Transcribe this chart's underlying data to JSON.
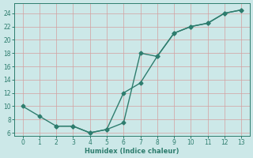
{
  "line1_x": [
    0,
    1,
    2,
    3,
    4,
    5,
    6,
    7,
    8,
    9,
    10,
    11,
    12,
    13
  ],
  "line1_y": [
    10,
    8.5,
    7,
    7,
    6,
    6.5,
    7.5,
    18,
    17.5,
    21,
    22,
    22.5,
    24,
    24.5
  ],
  "line2_x": [
    2,
    3,
    4,
    5,
    6,
    7,
    8,
    9,
    10,
    11,
    12,
    13
  ],
  "line2_y": [
    7,
    7,
    6,
    6.5,
    12,
    13.5,
    17.5,
    21,
    22,
    22.5,
    24,
    24.5
  ],
  "line_color": "#2e7d6e",
  "bg_color": "#cce8e8",
  "grid_color": "#b0d4d4",
  "xlabel": "Humidex (Indice chaleur)",
  "xlim": [
    -0.5,
    13.5
  ],
  "ylim": [
    5.5,
    25.5
  ],
  "xticks": [
    0,
    1,
    2,
    3,
    4,
    5,
    6,
    7,
    8,
    9,
    10,
    11,
    12,
    13
  ],
  "yticks": [
    6,
    8,
    10,
    12,
    14,
    16,
    18,
    20,
    22,
    24
  ],
  "marker": "D",
  "markersize": 2.5,
  "linewidth": 1.0
}
